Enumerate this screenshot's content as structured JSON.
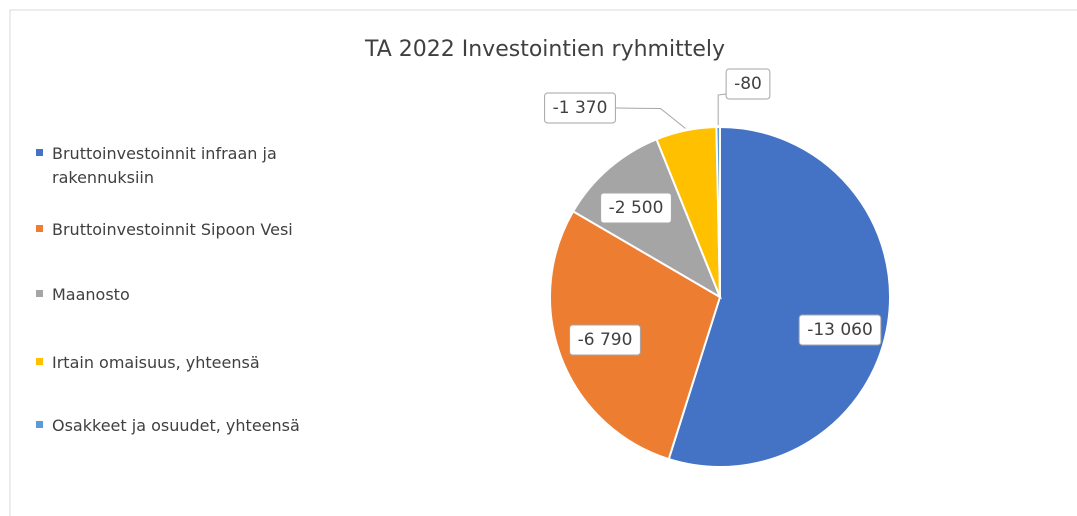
{
  "chart_data": {
    "type": "pie",
    "title": "TA 2022 Investointien ryhmittely",
    "categories": [
      "Bruttoinvestoinnit infraan ja rakennuksiin",
      "Bruttoinvestoinnit Sipoon Vesi",
      "Maanosto",
      "Irtain omaisuus, yhteensä",
      "Osakkeet ja osuudet, yhteensä"
    ],
    "values": [
      -13060,
      -6790,
      -2500,
      -1370,
      -80
    ],
    "value_labels": [
      "-13 060",
      "-6 790",
      "-2 500",
      "-1 370",
      "-80"
    ],
    "colors": [
      "#4472c4",
      "#ed7d31",
      "#a5a5a5",
      "#ffc000",
      "#5b9bd5"
    ],
    "legend": "left"
  }
}
